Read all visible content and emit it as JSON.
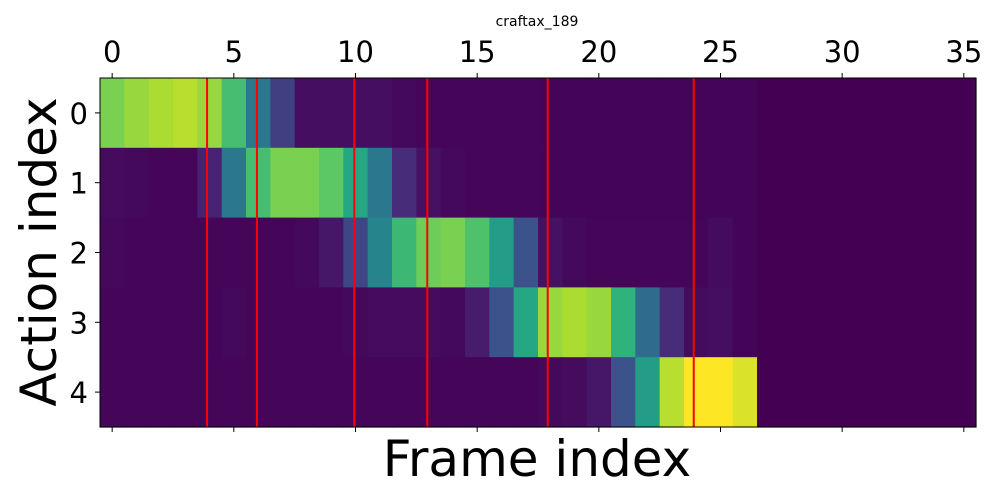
{
  "chart_data": {
    "type": "heatmap",
    "title": "craftax_189",
    "xlabel": "Frame index",
    "ylabel": "Action index",
    "xlim": [
      -0.5,
      35.5
    ],
    "ylim": [
      4.5,
      -0.5
    ],
    "x_ticks": [
      0,
      5,
      10,
      15,
      20,
      25,
      30,
      35
    ],
    "y_ticks": [
      0,
      1,
      2,
      3,
      4
    ],
    "x_tick_position": "top",
    "colormap": "viridis",
    "value_range": [
      0,
      1
    ],
    "n_frames": 36,
    "rows": [
      [
        0.8,
        0.85,
        0.88,
        0.9,
        0.85,
        0.7,
        0.4,
        0.2,
        0.05,
        0.05,
        0.05,
        0.05,
        0.03,
        0.02,
        0.02,
        0.02,
        0.02,
        0.02,
        0.01,
        0.01,
        0.01,
        0.01,
        0.01,
        0.01,
        0.01,
        0.01,
        0.01,
        0.0,
        0.0,
        0.0,
        0.0,
        0.0,
        0.0,
        0.0,
        0.0,
        0.0
      ],
      [
        0.04,
        0.03,
        0.02,
        0.02,
        0.12,
        0.4,
        0.7,
        0.8,
        0.8,
        0.75,
        0.6,
        0.4,
        0.15,
        0.06,
        0.03,
        0.02,
        0.02,
        0.02,
        0.01,
        0.01,
        0.01,
        0.01,
        0.01,
        0.01,
        0.01,
        0.01,
        0.01,
        0.0,
        0.0,
        0.0,
        0.0,
        0.0,
        0.0,
        0.0,
        0.0,
        0.0
      ],
      [
        0.03,
        0.02,
        0.02,
        0.02,
        0.02,
        0.02,
        0.02,
        0.02,
        0.03,
        0.08,
        0.22,
        0.45,
        0.68,
        0.78,
        0.8,
        0.72,
        0.55,
        0.25,
        0.06,
        0.03,
        0.02,
        0.02,
        0.02,
        0.02,
        0.02,
        0.04,
        0.01,
        0.0,
        0.0,
        0.0,
        0.0,
        0.0,
        0.0,
        0.0,
        0.0,
        0.0
      ],
      [
        0.02,
        0.02,
        0.02,
        0.02,
        0.02,
        0.03,
        0.02,
        0.02,
        0.02,
        0.02,
        0.03,
        0.04,
        0.04,
        0.04,
        0.03,
        0.1,
        0.25,
        0.6,
        0.85,
        0.88,
        0.85,
        0.65,
        0.35,
        0.15,
        0.04,
        0.05,
        0.01,
        0.0,
        0.0,
        0.0,
        0.0,
        0.0,
        0.0,
        0.0,
        0.0,
        0.0
      ],
      [
        0.02,
        0.02,
        0.02,
        0.02,
        0.02,
        0.02,
        0.02,
        0.02,
        0.02,
        0.02,
        0.02,
        0.02,
        0.02,
        0.02,
        0.02,
        0.02,
        0.02,
        0.02,
        0.03,
        0.04,
        0.08,
        0.25,
        0.55,
        0.9,
        1.0,
        1.0,
        0.95,
        0.0,
        0.0,
        0.0,
        0.0,
        0.0,
        0.0,
        0.0,
        0.0,
        0.0
      ]
    ],
    "vertical_lines": {
      "color": "#ff0000",
      "x": [
        3.9,
        5.95,
        9.95,
        12.95,
        17.9,
        23.9
      ]
    }
  }
}
